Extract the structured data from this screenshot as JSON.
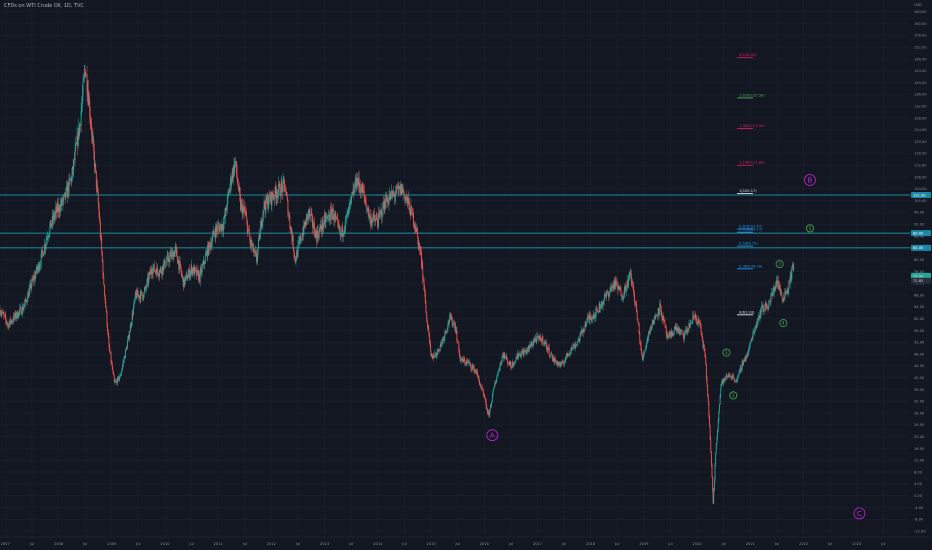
{
  "header": {
    "title": "CFDs on WTI Crude Oil, 1D, TVC"
  },
  "colors": {
    "background": "#131722",
    "grid": "#1e2230",
    "axis_text": "#8a8e99",
    "up": "#26a69a",
    "down": "#ef5350",
    "horizontal_line": "#20b4c8",
    "wave_green": "#4caf50",
    "wave_purple": "#c026d3",
    "fib_red": "#e91e63",
    "fib_green": "#4caf50",
    "fib_blue": "#2196f3",
    "fib_white": "#e0e3eb",
    "price_label_blue": "#1e88a8",
    "price_label_white": "#d1d4dc"
  },
  "chart_data": {
    "type": "candlestick",
    "title": "CFDs on WTI Crude Oil, 1D, TVC",
    "x_tick_labels": [
      "2007",
      "Jul",
      "2008",
      "Jul",
      "2009",
      "Jul",
      "2010",
      "Jul",
      "2011",
      "Jul",
      "2012",
      "Jul",
      "2013",
      "Jul",
      "2014",
      "Jul",
      "2015",
      "Jul",
      "2016",
      "Jul",
      "2017",
      "Jul",
      "2018",
      "Jul",
      "2019",
      "Jul",
      "2020",
      "Jul",
      "2021",
      "Jul",
      "2022",
      "Jul",
      "2023",
      "Jul"
    ],
    "x_tick_years": [
      2007,
      2007.5,
      2008,
      2008.5,
      2009,
      2009.5,
      2010,
      2010.5,
      2011,
      2011.5,
      2012,
      2012.5,
      2013,
      2013.5,
      2014,
      2014.5,
      2015,
      2015.5,
      2016,
      2016.5,
      2017,
      2017.5,
      2018,
      2018.5,
      2019,
      2019.5,
      2020,
      2020.5,
      2021,
      2021.5,
      2022,
      2022.5,
      2023,
      2023.5
    ],
    "y_ticks": [
      164,
      160,
      156,
      152,
      148,
      144,
      140,
      136,
      132,
      128,
      124,
      120,
      116,
      112,
      108,
      104,
      100,
      96,
      92,
      88,
      84,
      80,
      76,
      72,
      68,
      64,
      60,
      56,
      52,
      48,
      44,
      40,
      36,
      32,
      28,
      24,
      20,
      16,
      12,
      8,
      4,
      0,
      -4,
      -8,
      -12
    ],
    "y_tick_labels": [
      "164.00",
      "160.00",
      "156.00",
      "152.00",
      "148.00",
      "144.00",
      "140.00",
      "136.00",
      "132.00",
      "128.00",
      "124.00",
      "120.00",
      "116.00",
      "112.00",
      "108.00",
      "104.00",
      "100.00",
      "96.00",
      "92.00",
      "88.00",
      "84.00",
      "80.00",
      "76.00",
      "72.00",
      "68.00",
      "64.00",
      "60.00",
      "56.00",
      "52.00",
      "48.00",
      "44.00",
      "40.00",
      "36.00",
      "32.00",
      "28.00",
      "24.00",
      "20.00",
      "16.00",
      "12.00",
      "8.00",
      "4.00",
      "0.00",
      "-4.00",
      "-8.00",
      "-12.00"
    ],
    "y_axis_top_label": "USD",
    "ylim": [
      -14,
      168
    ],
    "xlim": [
      2006.9,
      2024.0
    ],
    "price_path": [
      [
        2006.9,
        63
      ],
      [
        2007.05,
        58
      ],
      [
        2007.2,
        61
      ],
      [
        2007.35,
        64
      ],
      [
        2007.5,
        72
      ],
      [
        2007.65,
        79
      ],
      [
        2007.8,
        89
      ],
      [
        2007.95,
        96
      ],
      [
        2008.1,
        100
      ],
      [
        2008.25,
        108
      ],
      [
        2008.4,
        126
      ],
      [
        2008.5,
        145
      ],
      [
        2008.55,
        138
      ],
      [
        2008.65,
        118
      ],
      [
        2008.75,
        98
      ],
      [
        2008.85,
        72
      ],
      [
        2008.95,
        50
      ],
      [
        2009.05,
        38
      ],
      [
        2009.15,
        40
      ],
      [
        2009.3,
        52
      ],
      [
        2009.45,
        68
      ],
      [
        2009.6,
        68
      ],
      [
        2009.75,
        77
      ],
      [
        2009.9,
        76
      ],
      [
        2010.05,
        80
      ],
      [
        2010.2,
        83
      ],
      [
        2010.35,
        72
      ],
      [
        2010.5,
        77
      ],
      [
        2010.65,
        74
      ],
      [
        2010.8,
        83
      ],
      [
        2010.95,
        90
      ],
      [
        2011.1,
        92
      ],
      [
        2011.25,
        108
      ],
      [
        2011.32,
        113
      ],
      [
        2011.42,
        98
      ],
      [
        2011.5,
        96
      ],
      [
        2011.6,
        86
      ],
      [
        2011.72,
        80
      ],
      [
        2011.85,
        98
      ],
      [
        2011.95,
        100
      ],
      [
        2012.1,
        103
      ],
      [
        2012.25,
        105
      ],
      [
        2012.35,
        92
      ],
      [
        2012.45,
        80
      ],
      [
        2012.55,
        87
      ],
      [
        2012.7,
        96
      ],
      [
        2012.85,
        88
      ],
      [
        2013.0,
        93
      ],
      [
        2013.15,
        96
      ],
      [
        2013.3,
        88
      ],
      [
        2013.45,
        96
      ],
      [
        2013.6,
        107
      ],
      [
        2013.72,
        103
      ],
      [
        2013.85,
        94
      ],
      [
        2014.0,
        93
      ],
      [
        2014.15,
        100
      ],
      [
        2014.3,
        102
      ],
      [
        2014.45,
        104
      ],
      [
        2014.55,
        100
      ],
      [
        2014.7,
        92
      ],
      [
        2014.82,
        80
      ],
      [
        2014.92,
        60
      ],
      [
        2015.0,
        47
      ],
      [
        2015.1,
        48
      ],
      [
        2015.2,
        52
      ],
      [
        2015.35,
        60
      ],
      [
        2015.45,
        58
      ],
      [
        2015.55,
        46
      ],
      [
        2015.7,
        45
      ],
      [
        2015.85,
        42
      ],
      [
        2016.0,
        33
      ],
      [
        2016.08,
        27
      ],
      [
        2016.2,
        38
      ],
      [
        2016.35,
        48
      ],
      [
        2016.5,
        44
      ],
      [
        2016.65,
        48
      ],
      [
        2016.8,
        49
      ],
      [
        2016.95,
        53
      ],
      [
        2017.1,
        53
      ],
      [
        2017.3,
        46
      ],
      [
        2017.45,
        44
      ],
      [
        2017.6,
        49
      ],
      [
        2017.75,
        52
      ],
      [
        2017.95,
        60
      ],
      [
        2018.1,
        62
      ],
      [
        2018.3,
        68
      ],
      [
        2018.45,
        72
      ],
      [
        2018.6,
        68
      ],
      [
        2018.75,
        75
      ],
      [
        2018.85,
        64
      ],
      [
        2018.97,
        46
      ],
      [
        2019.1,
        56
      ],
      [
        2019.3,
        64
      ],
      [
        2019.45,
        53
      ],
      [
        2019.6,
        57
      ],
      [
        2019.75,
        54
      ],
      [
        2019.95,
        61
      ],
      [
        2020.05,
        58
      ],
      [
        2020.15,
        47
      ],
      [
        2020.22,
        28
      ],
      [
        2020.3,
        -2
      ],
      [
        2020.36,
        18
      ],
      [
        2020.45,
        38
      ],
      [
        2020.6,
        41
      ],
      [
        2020.75,
        39
      ],
      [
        2020.85,
        45
      ],
      [
        2020.95,
        48
      ],
      [
        2021.05,
        55
      ],
      [
        2021.2,
        63
      ],
      [
        2021.35,
        65
      ],
      [
        2021.5,
        73
      ],
      [
        2021.6,
        67
      ],
      [
        2021.7,
        70
      ],
      [
        2021.78,
        76
      ],
      [
        2021.82,
        78
      ]
    ],
    "horizontal_lines": [
      {
        "price": 101.9,
        "label": "101.90"
      },
      {
        "price": 89.0,
        "label": "89.00"
      },
      {
        "price": 84.0,
        "label": "84.00"
      }
    ],
    "price_labels": [
      {
        "price": 74.5,
        "label": "74.50"
      },
      {
        "price": 72.85,
        "label": "72.85"
      }
    ],
    "fib_levels": [
      {
        "price": 148.5,
        "label": "2(148.93)",
        "color": "fib_red"
      },
      {
        "price": 134.8,
        "label": "1.618(133.58)",
        "color": "fib_green"
      },
      {
        "price": 124.5,
        "label": "1.382(123.56)",
        "color": "fib_red"
      },
      {
        "price": 112.0,
        "label": "1.146(111.86)",
        "color": "fib_red"
      },
      {
        "price": 102.4,
        "label": "1(105.17)",
        "color": "fib_white"
      },
      {
        "price": 90.4,
        "label": "0.618(91.47)",
        "color": "fib_blue"
      },
      {
        "price": 89.3,
        "label": "0.618(89.17)",
        "color": "fib_blue"
      },
      {
        "price": 84.6,
        "label": "0.5(85.75)",
        "color": "fib_blue"
      },
      {
        "price": 76.9,
        "label": "0.382(78.16)",
        "color": "fib_blue"
      },
      {
        "price": 61.3,
        "label": "0(61.93)",
        "color": "fib_white"
      }
    ],
    "wave_labels": [
      {
        "label": "A",
        "x": 2016.15,
        "price": 20.5,
        "color": "wave_purple",
        "size": "large"
      },
      {
        "label": "B",
        "x": 2022.12,
        "price": 107.0,
        "color": "wave_purple",
        "size": "large"
      },
      {
        "label": "C",
        "x": 2023.05,
        "price": -6.0,
        "color": "wave_purple",
        "size": "large"
      },
      {
        "label": "1",
        "x": 2020.55,
        "price": 48.5,
        "color": "wave_green",
        "size": "small"
      },
      {
        "label": "2",
        "x": 2020.68,
        "price": 34.0,
        "color": "wave_green",
        "size": "small"
      },
      {
        "label": "3",
        "x": 2021.55,
        "price": 78.5,
        "color": "wave_green",
        "size": "small"
      },
      {
        "label": "4",
        "x": 2021.62,
        "price": 58.5,
        "color": "wave_green",
        "size": "small"
      },
      {
        "label": "5",
        "x": 2022.12,
        "price": 90.6,
        "color": "wave_green",
        "size": "small"
      }
    ]
  }
}
